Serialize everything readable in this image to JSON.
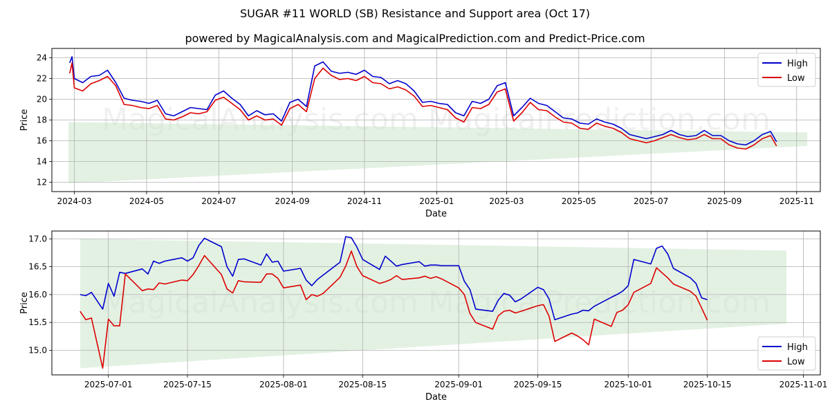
{
  "title": "SUGAR #11 WORLD (SB) Resistance and Support area (Oct 17)",
  "subtitle": "powered by MagicalAnalysis.com and MagicalPrediction.com and Predict-Price.com",
  "watermark": "MagicalAnalysis.com    MagicalPrediction.com",
  "colors": {
    "high": "#0000cc",
    "low": "#dd0000",
    "band": "#c8e3c8",
    "grid": "#b0b0b0"
  },
  "chart_data": [
    {
      "type": "line",
      "xlabel": "Date",
      "ylabel": "Price",
      "xlim": [
        "2024-02-11",
        "2025-11-21"
      ],
      "ylim": [
        11.1,
        24.9
      ],
      "yticks": [
        12,
        14,
        16,
        18,
        20,
        22,
        24
      ],
      "xticks": [
        {
          "date": "2024-03-01",
          "label": "2024-03"
        },
        {
          "date": "2024-05-01",
          "label": "2024-05"
        },
        {
          "date": "2024-07-01",
          "label": "2024-07"
        },
        {
          "date": "2024-09-01",
          "label": "2024-09"
        },
        {
          "date": "2024-11-01",
          "label": "2024-11"
        },
        {
          "date": "2025-01-01",
          "label": "2025-01"
        },
        {
          "date": "2025-03-01",
          "label": "2025-03"
        },
        {
          "date": "2025-05-01",
          "label": "2025-05"
        },
        {
          "date": "2025-07-01",
          "label": "2025-07"
        },
        {
          "date": "2025-09-01",
          "label": "2025-09"
        },
        {
          "date": "2025-11-01",
          "label": "2025-11"
        }
      ],
      "grid": true,
      "legend": "top-right",
      "band": {
        "x": [
          "2024-02-25",
          "2025-11-10"
        ],
        "upper": [
          17.8,
          16.8
        ],
        "lower": [
          11.9,
          15.5
        ]
      },
      "x": [
        "2024-02-26",
        "2024-02-28",
        "2024-03-01",
        "2024-03-08",
        "2024-03-15",
        "2024-03-22",
        "2024-03-29",
        "2024-04-05",
        "2024-04-12",
        "2024-04-19",
        "2024-04-26",
        "2024-05-03",
        "2024-05-10",
        "2024-05-17",
        "2024-05-24",
        "2024-05-31",
        "2024-06-07",
        "2024-06-14",
        "2024-06-21",
        "2024-06-28",
        "2024-07-05",
        "2024-07-12",
        "2024-07-19",
        "2024-07-26",
        "2024-08-02",
        "2024-08-09",
        "2024-08-16",
        "2024-08-23",
        "2024-08-30",
        "2024-09-06",
        "2024-09-13",
        "2024-09-20",
        "2024-09-27",
        "2024-10-04",
        "2024-10-11",
        "2024-10-18",
        "2024-10-25",
        "2024-11-01",
        "2024-11-08",
        "2024-11-15",
        "2024-11-22",
        "2024-11-29",
        "2024-12-06",
        "2024-12-13",
        "2024-12-20",
        "2024-12-27",
        "2025-01-03",
        "2025-01-10",
        "2025-01-17",
        "2025-01-24",
        "2025-01-31",
        "2025-02-07",
        "2025-02-14",
        "2025-02-21",
        "2025-02-28",
        "2025-03-07",
        "2025-03-14",
        "2025-03-21",
        "2025-03-28",
        "2025-04-04",
        "2025-04-11",
        "2025-04-18",
        "2025-04-25",
        "2025-05-02",
        "2025-05-09",
        "2025-05-16",
        "2025-05-23",
        "2025-05-30",
        "2025-06-06",
        "2025-06-13",
        "2025-06-20",
        "2025-06-27",
        "2025-07-04",
        "2025-07-11",
        "2025-07-18",
        "2025-07-25",
        "2025-08-01",
        "2025-08-08",
        "2025-08-15",
        "2025-08-22",
        "2025-08-29",
        "2025-09-05",
        "2025-09-12",
        "2025-09-19",
        "2025-09-26",
        "2025-10-03",
        "2025-10-10",
        "2025-10-15"
      ],
      "series": [
        {
          "name": "High",
          "values": [
            23.5,
            24.1,
            22.0,
            21.6,
            22.2,
            22.3,
            22.8,
            21.6,
            20.1,
            19.9,
            19.8,
            19.6,
            19.9,
            18.6,
            18.4,
            18.8,
            19.2,
            19.1,
            19.0,
            20.4,
            20.8,
            20.1,
            19.5,
            18.4,
            18.9,
            18.5,
            18.6,
            17.9,
            19.7,
            20.0,
            19.3,
            23.2,
            23.6,
            22.7,
            22.5,
            22.6,
            22.4,
            22.8,
            22.2,
            22.1,
            21.5,
            21.8,
            21.5,
            20.8,
            19.7,
            19.8,
            19.6,
            19.5,
            18.7,
            18.4,
            19.8,
            19.6,
            20.0,
            21.3,
            21.6,
            18.4,
            19.2,
            20.1,
            19.6,
            19.4,
            18.8,
            18.2,
            18.1,
            17.7,
            17.6,
            18.1,
            17.8,
            17.6,
            17.2,
            16.6,
            16.4,
            16.2,
            16.4,
            16.6,
            17.0,
            16.6,
            16.4,
            16.5,
            17.0,
            16.5,
            16.5,
            16.0,
            15.7,
            15.6,
            16.0,
            16.6,
            16.9,
            15.9
          ]
        },
        {
          "name": "Low",
          "values": [
            22.5,
            23.5,
            21.1,
            20.8,
            21.5,
            21.8,
            22.2,
            21.3,
            19.5,
            19.4,
            19.2,
            19.1,
            19.4,
            18.1,
            18.0,
            18.3,
            18.7,
            18.6,
            18.8,
            19.9,
            20.2,
            19.6,
            19.0,
            18.0,
            18.4,
            18.0,
            18.1,
            17.5,
            19.1,
            19.5,
            18.8,
            22.0,
            23.0,
            22.3,
            21.9,
            22.0,
            21.8,
            22.2,
            21.6,
            21.5,
            21.0,
            21.2,
            20.9,
            20.3,
            19.3,
            19.4,
            19.2,
            19.0,
            18.2,
            17.8,
            19.2,
            19.1,
            19.5,
            20.7,
            21.0,
            17.9,
            18.7,
            19.7,
            19.0,
            18.9,
            18.3,
            17.8,
            17.7,
            17.2,
            17.1,
            17.7,
            17.4,
            17.2,
            16.8,
            16.2,
            16.0,
            15.8,
            16.0,
            16.3,
            16.6,
            16.3,
            16.1,
            16.2,
            16.6,
            16.2,
            16.2,
            15.6,
            15.3,
            15.2,
            15.6,
            16.2,
            16.5,
            15.5
          ]
        }
      ]
    },
    {
      "type": "line",
      "xlabel": "Date",
      "ylabel": "Price",
      "xlim": [
        "2025-06-21",
        "2025-11-04"
      ],
      "ylim": [
        14.56,
        17.14
      ],
      "yticks": [
        15.0,
        15.5,
        16.0,
        16.5,
        17.0
      ],
      "xticks": [
        {
          "date": "2025-07-01",
          "label": "2025-07-01"
        },
        {
          "date": "2025-07-15",
          "label": "2025-07-15"
        },
        {
          "date": "2025-08-01",
          "label": "2025-08-01"
        },
        {
          "date": "2025-08-15",
          "label": "2025-08-15"
        },
        {
          "date": "2025-09-01",
          "label": "2025-09-01"
        },
        {
          "date": "2025-09-15",
          "label": "2025-09-15"
        },
        {
          "date": "2025-10-01",
          "label": "2025-10-01"
        },
        {
          "date": "2025-10-15",
          "label": "2025-10-15"
        },
        {
          "date": "2025-11-01",
          "label": "2025-11-01"
        }
      ],
      "grid": true,
      "legend": "bottom-right",
      "band": {
        "x": [
          "2025-06-26",
          "2025-10-29"
        ],
        "upper": [
          17.0,
          16.79
        ],
        "lower": [
          14.68,
          15.48
        ]
      },
      "x": [
        "2025-06-26",
        "2025-06-27",
        "2025-06-28",
        "2025-06-30",
        "2025-07-01",
        "2025-07-02",
        "2025-07-03",
        "2025-07-04",
        "2025-07-07",
        "2025-07-08",
        "2025-07-09",
        "2025-07-10",
        "2025-07-11",
        "2025-07-14",
        "2025-07-15",
        "2025-07-16",
        "2025-07-17",
        "2025-07-18",
        "2025-07-21",
        "2025-07-22",
        "2025-07-23",
        "2025-07-24",
        "2025-07-25",
        "2025-07-28",
        "2025-07-29",
        "2025-07-30",
        "2025-07-31",
        "2025-08-01",
        "2025-08-04",
        "2025-08-05",
        "2025-08-06",
        "2025-08-07",
        "2025-08-08",
        "2025-08-11",
        "2025-08-12",
        "2025-08-13",
        "2025-08-14",
        "2025-08-15",
        "2025-08-18",
        "2025-08-19",
        "2025-08-20",
        "2025-08-21",
        "2025-08-22",
        "2025-08-25",
        "2025-08-26",
        "2025-08-27",
        "2025-08-28",
        "2025-08-29",
        "2025-09-01",
        "2025-09-02",
        "2025-09-03",
        "2025-09-04",
        "2025-09-07",
        "2025-09-08",
        "2025-09-09",
        "2025-09-10",
        "2025-09-11",
        "2025-09-12",
        "2025-09-15",
        "2025-09-16",
        "2025-09-17",
        "2025-09-18",
        "2025-09-21",
        "2025-09-22",
        "2025-09-23",
        "2025-09-24",
        "2025-09-25",
        "2025-09-28",
        "2025-09-29",
        "2025-09-30",
        "2025-10-01",
        "2025-10-02",
        "2025-10-05",
        "2025-10-06",
        "2025-10-07",
        "2025-10-08",
        "2025-10-09",
        "2025-10-12",
        "2025-10-13",
        "2025-10-14",
        "2025-10-15"
      ],
      "series": [
        {
          "name": "High",
          "values": [
            16.0,
            15.98,
            16.04,
            15.74,
            16.2,
            15.97,
            16.4,
            16.38,
            16.46,
            16.37,
            16.6,
            16.56,
            16.6,
            16.66,
            16.6,
            16.66,
            16.88,
            17.01,
            16.86,
            16.5,
            16.33,
            16.63,
            16.64,
            16.53,
            16.73,
            16.58,
            16.6,
            16.42,
            16.47,
            16.26,
            16.16,
            16.27,
            16.35,
            16.58,
            17.04,
            17.02,
            16.85,
            16.63,
            16.45,
            16.69,
            16.6,
            16.51,
            16.54,
            16.59,
            16.51,
            16.53,
            16.53,
            16.52,
            16.52,
            16.24,
            16.09,
            15.74,
            15.7,
            15.9,
            16.02,
            15.99,
            15.87,
            15.92,
            16.13,
            16.09,
            15.92,
            15.55,
            15.65,
            15.67,
            15.72,
            15.71,
            15.79,
            15.95,
            16.0,
            16.06,
            16.16,
            16.63,
            16.55,
            16.83,
            16.87,
            16.73,
            16.47,
            16.3,
            16.2,
            15.94,
            15.91
          ]
        },
        {
          "name": "Low",
          "values": [
            15.7,
            15.55,
            15.58,
            14.68,
            15.56,
            15.44,
            15.44,
            16.37,
            16.07,
            16.1,
            16.09,
            16.21,
            16.19,
            16.26,
            16.25,
            16.36,
            16.52,
            16.7,
            16.36,
            16.1,
            16.03,
            16.25,
            16.23,
            16.22,
            16.37,
            16.37,
            16.29,
            16.12,
            16.17,
            15.91,
            16.0,
            15.97,
            16.02,
            16.31,
            16.51,
            16.78,
            16.5,
            16.34,
            16.2,
            16.23,
            16.27,
            16.34,
            16.27,
            16.3,
            16.33,
            16.29,
            16.32,
            16.28,
            16.12,
            16.0,
            15.66,
            15.5,
            15.38,
            15.62,
            15.7,
            15.72,
            15.67,
            15.7,
            15.8,
            15.82,
            15.61,
            15.16,
            15.31,
            15.26,
            15.19,
            15.1,
            15.56,
            15.43,
            15.68,
            15.72,
            15.82,
            16.04,
            16.2,
            16.48,
            16.39,
            16.3,
            16.19,
            16.06,
            15.97,
            15.76,
            15.54
          ]
        }
      ]
    }
  ]
}
